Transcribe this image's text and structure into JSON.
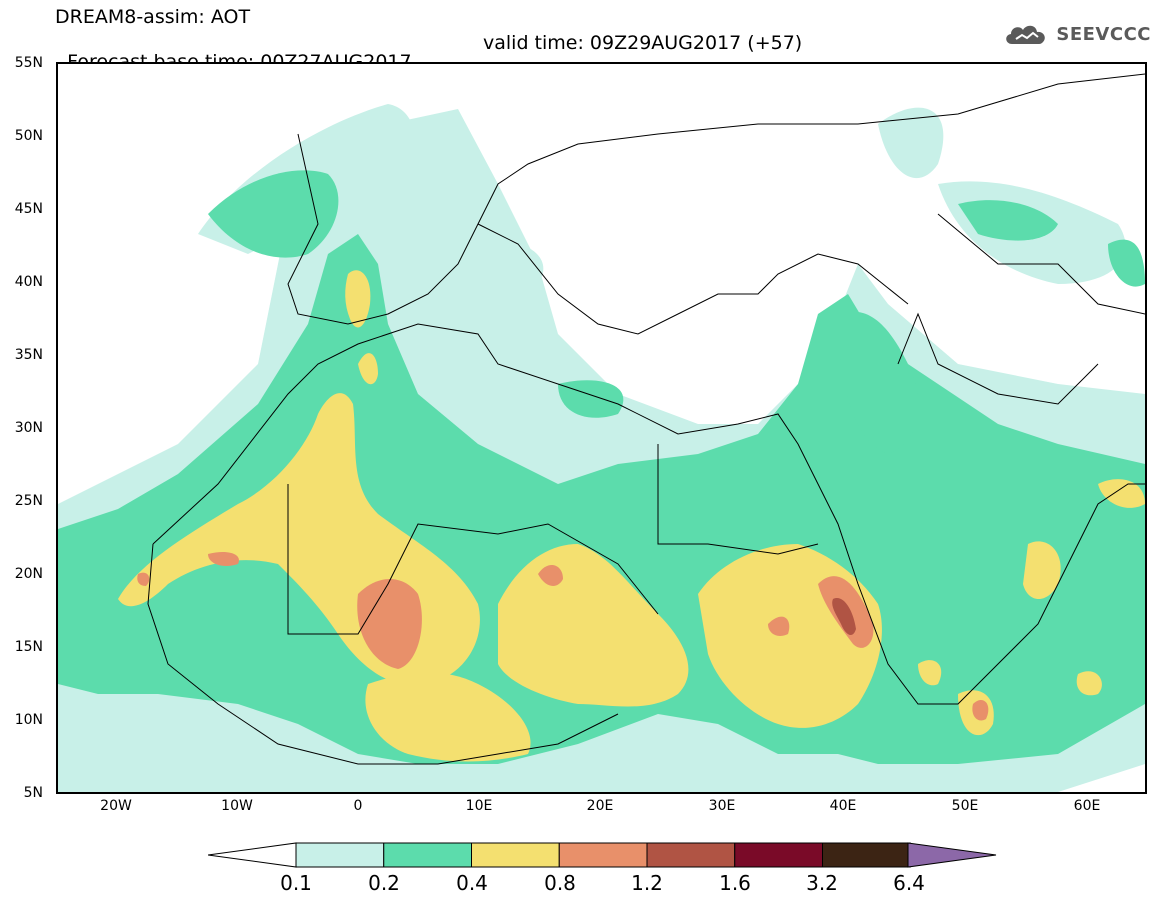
{
  "header": {
    "title": "DREAM8-assim: AOT",
    "base_time": "Forecast base time: 00Z27AUG2017",
    "valid_time": "valid time: 09Z29AUG2017 (+57)",
    "logo_text": "SEEVCCC"
  },
  "map": {
    "lat_range": [
      5,
      55
    ],
    "lon_range": [
      -25,
      65
    ],
    "lat_labels": [
      "55N",
      "50N",
      "45N",
      "40N",
      "35N",
      "30N",
      "25N",
      "20N",
      "15N",
      "10N",
      "5N"
    ],
    "lon_labels": [
      "20W",
      "10W",
      "0",
      "10E",
      "20E",
      "30E",
      "40E",
      "50E",
      "60E"
    ]
  },
  "colorbar": {
    "labels": [
      "0.1",
      "0.2",
      "0.4",
      "0.8",
      "1.2",
      "1.6",
      "3.2",
      "6.4"
    ],
    "colors": [
      "#c8f0e8",
      "#5cdcac",
      "#f4e070",
      "#e8906a",
      "#b05444",
      "#7a0a28",
      "#3c2414",
      "#8c68a8"
    ]
  }
}
